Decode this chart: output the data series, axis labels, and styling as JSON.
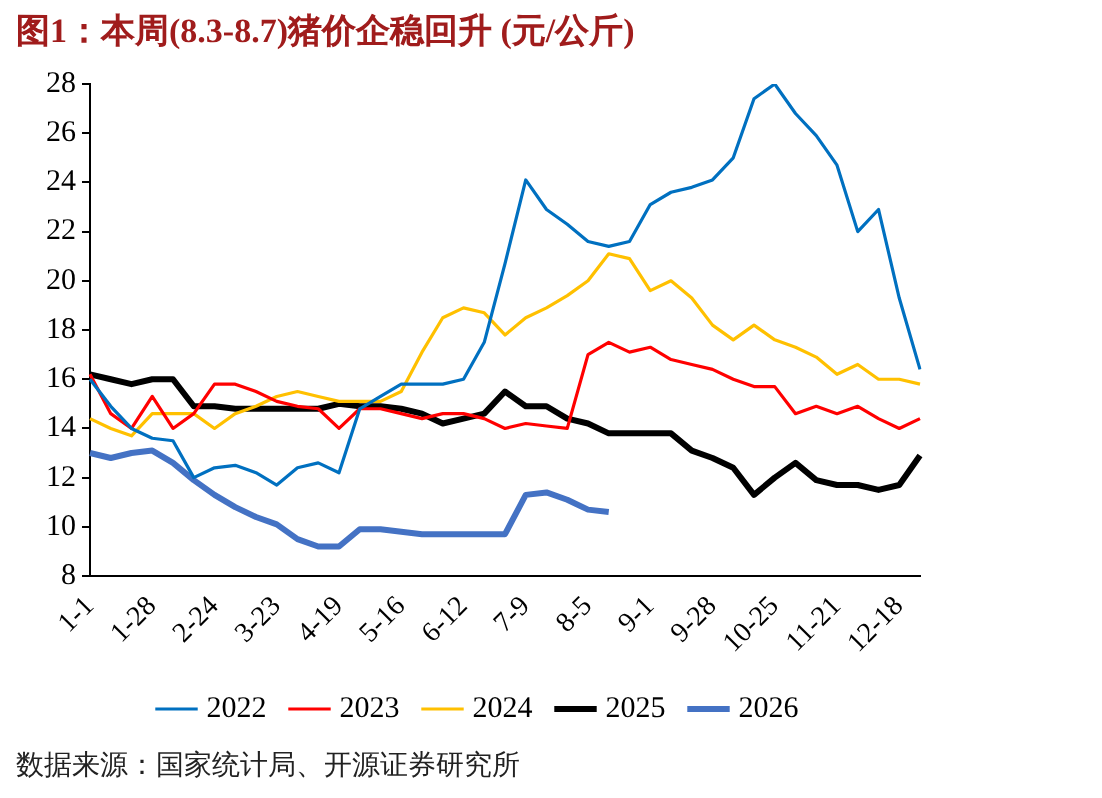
{
  "chart_data": {
    "type": "line",
    "title": "图1：本周(8.3-8.7)猪价企稳回升 (元/公斤)",
    "annotations": [
      "数据来源：国家统计局、开源证券研究所"
    ],
    "categories": [
      "1-1",
      null,
      null,
      "1-28",
      null,
      null,
      "2-24",
      null,
      null,
      "3-23",
      null,
      null,
      "4-19",
      null,
      null,
      "5-16",
      null,
      null,
      "6-12",
      null,
      null,
      "7-9",
      null,
      null,
      "8-5",
      null,
      null,
      "9-1",
      null,
      null,
      "9-28",
      null,
      null,
      "10-25",
      null,
      null,
      "11-21",
      null,
      null,
      "12-18",
      null
    ],
    "series": [
      {
        "name": "2022",
        "color": "#0070c0",
        "values": [
          16.0,
          14.9,
          14.0,
          13.6,
          13.5,
          12.0,
          12.4,
          12.5,
          12.2,
          11.7,
          12.4,
          12.6,
          12.2,
          14.8,
          15.3,
          15.8,
          15.8,
          15.8,
          16.0,
          17.5,
          20.7,
          24.1,
          22.9,
          22.3,
          21.6,
          21.4,
          21.6,
          23.1,
          23.6,
          23.8,
          24.1,
          25.0,
          27.4,
          28.0,
          26.8,
          25.9,
          24.7,
          22.0,
          22.9,
          19.3,
          16.4
        ]
      },
      {
        "name": "2023",
        "color": "#ff0000",
        "values": [
          16.2,
          14.6,
          14.0,
          15.3,
          14.0,
          14.6,
          15.8,
          15.8,
          15.5,
          15.1,
          14.9,
          14.8,
          14.0,
          14.8,
          14.8,
          14.6,
          14.4,
          14.6,
          14.6,
          14.4,
          14.0,
          14.2,
          14.1,
          14.0,
          17.0,
          17.5,
          17.1,
          17.3,
          16.8,
          16.6,
          16.4,
          16.0,
          15.7,
          15.7,
          14.6,
          14.9,
          14.6,
          14.9,
          14.4,
          14.0,
          14.4
        ]
      },
      {
        "name": "2024",
        "color": "#ffc000",
        "values": [
          14.4,
          14.0,
          13.7,
          14.6,
          14.6,
          14.6,
          14.0,
          14.6,
          14.9,
          15.3,
          15.5,
          15.3,
          15.1,
          15.1,
          15.1,
          15.5,
          17.1,
          18.5,
          18.9,
          18.7,
          17.8,
          18.5,
          18.9,
          19.4,
          20.0,
          21.1,
          20.9,
          19.6,
          20.0,
          19.3,
          18.2,
          17.6,
          18.2,
          17.6,
          17.3,
          16.9,
          16.2,
          16.6,
          16.0,
          16.0,
          15.8
        ]
      },
      {
        "name": "2025",
        "color": "#000000",
        "values": [
          16.2,
          16.0,
          15.8,
          16.0,
          16.0,
          14.9,
          14.9,
          14.8,
          14.8,
          14.8,
          14.8,
          14.8,
          15.0,
          14.9,
          14.9,
          14.8,
          14.6,
          14.2,
          14.4,
          14.6,
          15.5,
          14.9,
          14.9,
          14.4,
          14.2,
          13.8,
          13.8,
          13.8,
          13.8,
          13.1,
          12.8,
          12.4,
          11.3,
          12.0,
          12.6,
          11.9,
          11.7,
          11.7,
          11.5,
          11.7,
          12.9
        ]
      },
      {
        "name": "2026",
        "color": "#4472c4",
        "values": [
          13.0,
          12.8,
          13.0,
          13.1,
          12.6,
          11.9,
          11.3,
          10.8,
          10.4,
          10.1,
          9.5,
          9.2,
          9.2,
          9.9,
          9.9,
          9.8,
          9.7,
          9.7,
          9.7,
          9.7,
          9.7,
          11.3,
          11.4,
          11.1,
          10.7,
          10.6,
          null,
          null,
          null,
          null,
          null,
          null,
          null,
          null,
          null,
          null,
          null,
          null,
          null,
          null,
          null
        ]
      }
    ],
    "ylim": [
      8,
      28
    ],
    "yticks": [
      8,
      10,
      12,
      14,
      16,
      18,
      20,
      22,
      24,
      26,
      28
    ],
    "grid": false,
    "legend": "bottom"
  }
}
